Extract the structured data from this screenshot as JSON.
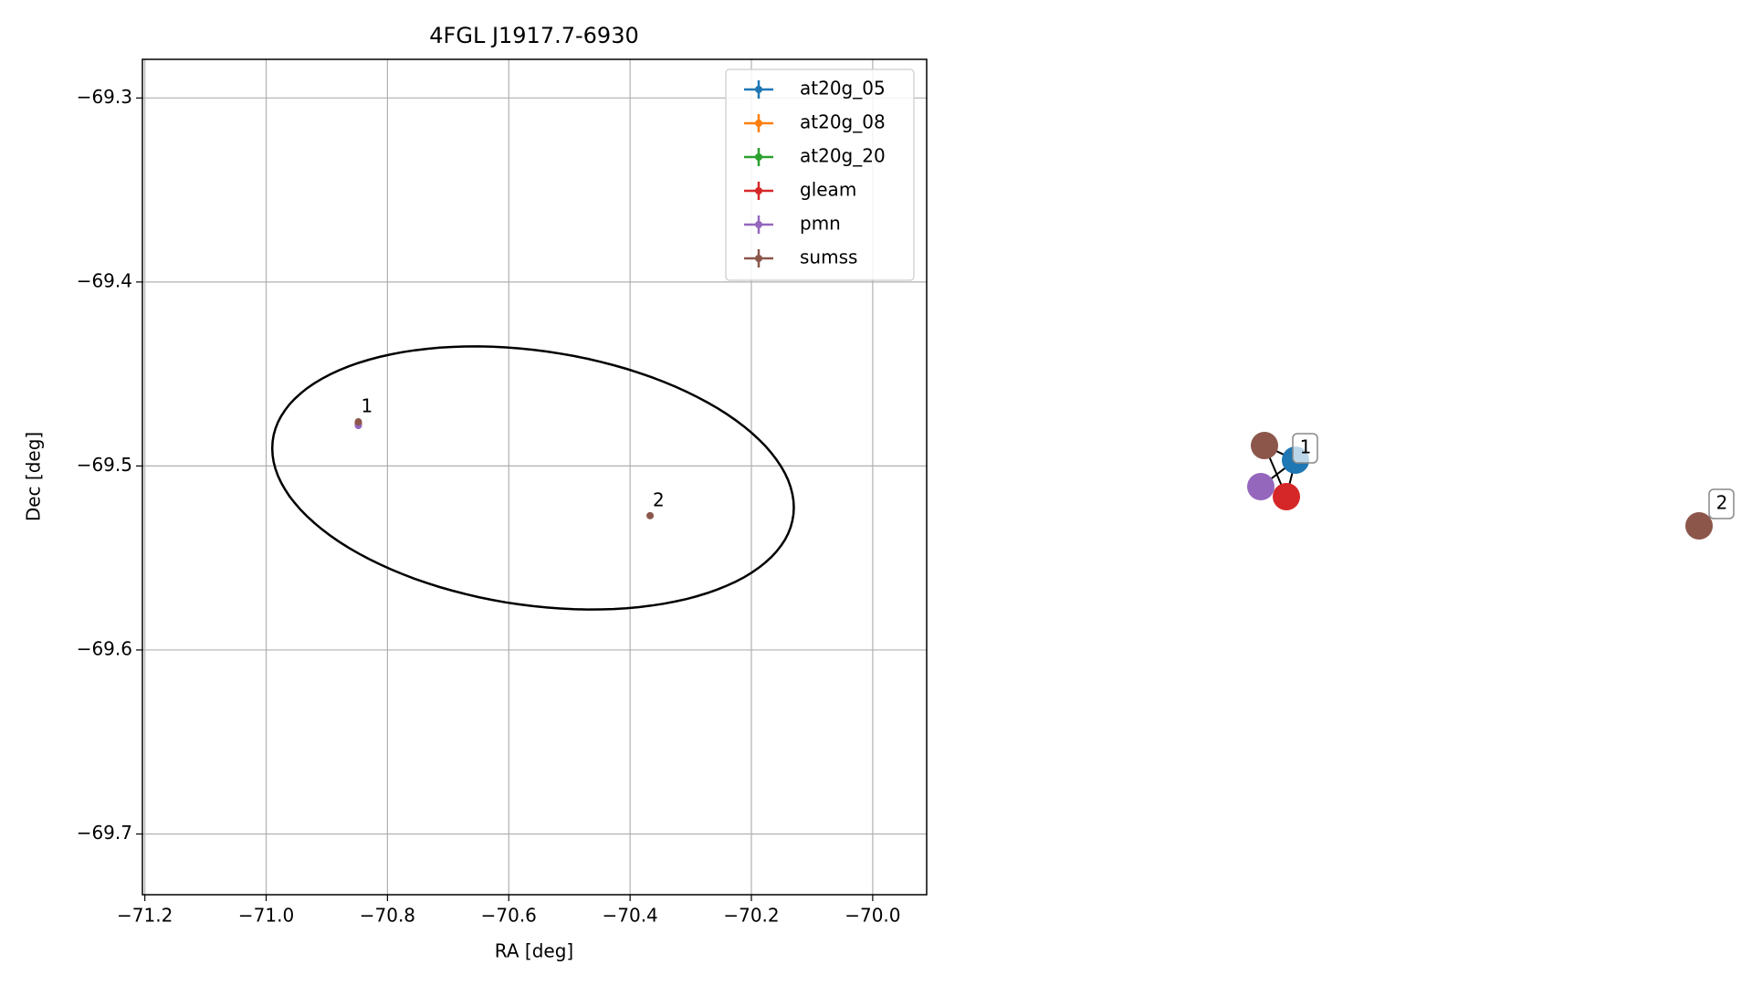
{
  "chart_data": {
    "type": "scatter",
    "title": "4FGL J1917.7-6930",
    "x_label": "RA [deg]",
    "y_label": "Dec [deg]",
    "xlim": [
      -71.204,
      -69.911
    ],
    "ylim": [
      -69.733,
      -69.279
    ],
    "xticks": [
      {
        "value": -71.2,
        "label": "−71.2"
      },
      {
        "value": -71.0,
        "label": "−71.0"
      },
      {
        "value": -70.8,
        "label": "−70.8"
      },
      {
        "value": -70.6,
        "label": "−70.6"
      },
      {
        "value": -70.4,
        "label": "−70.4"
      },
      {
        "value": -70.2,
        "label": "−70.2"
      },
      {
        "value": -70.0,
        "label": "−70.0"
      }
    ],
    "yticks": [
      {
        "value": -69.3,
        "label": "−69.3"
      },
      {
        "value": -69.4,
        "label": "−69.4"
      },
      {
        "value": -69.5,
        "label": "−69.5"
      },
      {
        "value": -69.6,
        "label": "−69.6"
      },
      {
        "value": -69.7,
        "label": "−69.7"
      }
    ],
    "grid": true,
    "legend": "upper right",
    "series": [
      {
        "name": "at20g_05",
        "color": "#1f77b4",
        "x": [
          -70.848
        ],
        "y": [
          -69.477
        ]
      },
      {
        "name": "at20g_08",
        "color": "#ff7f0e",
        "x": [
          -70.848
        ],
        "y": [
          -69.477
        ]
      },
      {
        "name": "at20g_20",
        "color": "#2ca02c",
        "x": [
          -70.848
        ],
        "y": [
          -69.477
        ]
      },
      {
        "name": "gleam",
        "color": "#d62728",
        "x": [
          -70.848
        ],
        "y": [
          -69.477
        ]
      },
      {
        "name": "pmn",
        "color": "#9467bd",
        "x": [
          -70.848
        ],
        "y": [
          -69.478
        ]
      },
      {
        "name": "sumss",
        "color": "#8c564b",
        "x": [
          -70.848,
          -70.367
        ],
        "y": [
          -69.476,
          -69.527
        ]
      }
    ],
    "annotations": [
      "1",
      "2"
    ],
    "ellipse": {
      "center": [
        -70.56,
        -69.5065
      ],
      "x_amplitude": 0.43,
      "y_amplitude": 0.0715,
      "phase_deg": 103
    }
  },
  "graph": {
    "labels": [
      "1",
      "2"
    ]
  }
}
